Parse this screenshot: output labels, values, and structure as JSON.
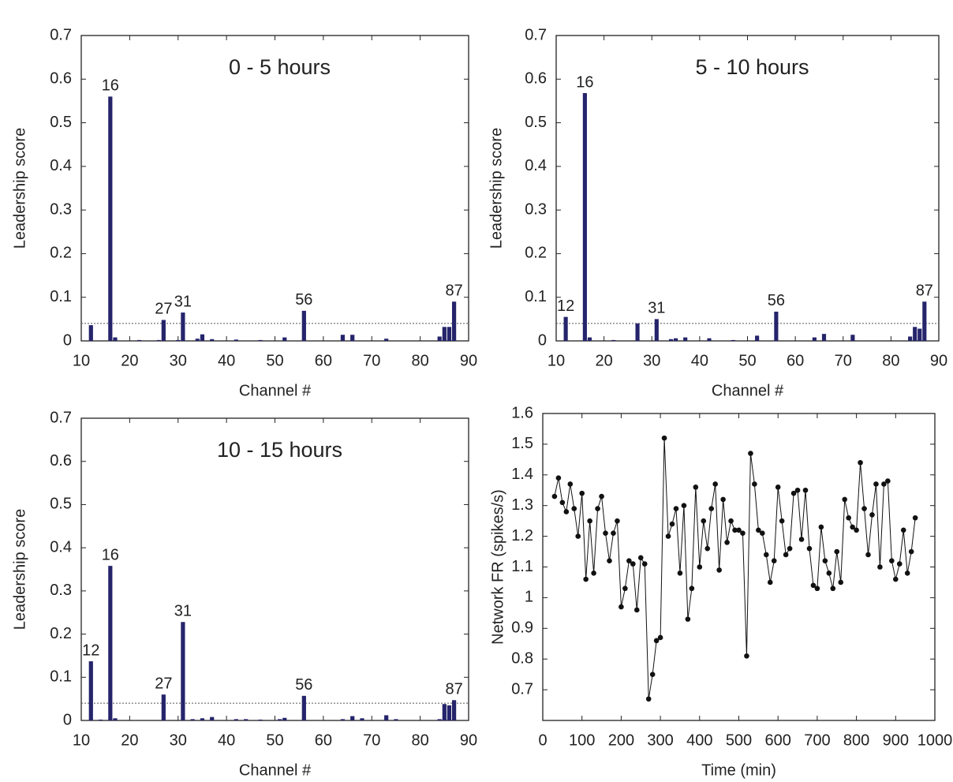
{
  "chart_data": [
    {
      "type": "bar",
      "title": "0 - 5 hours",
      "x_label": "Channel #",
      "y_label": "Leadership score",
      "x": [
        12,
        16,
        17,
        22,
        26,
        27,
        30,
        31,
        34,
        35,
        37,
        42,
        47,
        52,
        56,
        64,
        66,
        73,
        84,
        85,
        86,
        87
      ],
      "values": [
        0.036,
        0.56,
        0.008,
        0.002,
        0.002,
        0.048,
        0.002,
        0.065,
        0.005,
        0.015,
        0.004,
        0.003,
        0.002,
        0.008,
        0.069,
        0.014,
        0.014,
        0.005,
        0.01,
        0.032,
        0.032,
        0.09
      ],
      "point_labels": [
        null,
        "16",
        null,
        null,
        null,
        "27",
        null,
        "31",
        null,
        null,
        null,
        null,
        null,
        null,
        "56",
        null,
        null,
        null,
        null,
        null,
        null,
        "87"
      ],
      "color": "#25246b",
      "threshold": 0.04,
      "xlim": [
        10,
        90
      ],
      "xticks": [
        10,
        20,
        30,
        40,
        50,
        60,
        70,
        80,
        90
      ],
      "ylim": [
        0,
        0.7
      ],
      "yticks": [
        0,
        0.1,
        0.2,
        0.3,
        0.4,
        0.5,
        0.6,
        0.7
      ]
    },
    {
      "type": "bar",
      "title": "5 - 10 hours",
      "x_label": "Channel #",
      "y_label": "Leadership score",
      "x": [
        12,
        16,
        17,
        22,
        27,
        31,
        34,
        35,
        37,
        42,
        47,
        52,
        56,
        64,
        66,
        72,
        84,
        85,
        86,
        87
      ],
      "values": [
        0.055,
        0.568,
        0.008,
        0.002,
        0.04,
        0.05,
        0.004,
        0.006,
        0.008,
        0.006,
        0.002,
        0.012,
        0.067,
        0.008,
        0.016,
        0.014,
        0.01,
        0.032,
        0.028,
        0.09
      ],
      "point_labels": [
        "12",
        "16",
        null,
        null,
        null,
        "31",
        null,
        null,
        null,
        null,
        null,
        null,
        "56",
        null,
        null,
        null,
        null,
        null,
        null,
        "87"
      ],
      "color": "#25246b",
      "threshold": 0.04,
      "xlim": [
        10,
        90
      ],
      "xticks": [
        10,
        20,
        30,
        40,
        50,
        60,
        70,
        80,
        90
      ],
      "ylim": [
        0,
        0.7
      ],
      "yticks": [
        0,
        0.1,
        0.2,
        0.3,
        0.4,
        0.5,
        0.6,
        0.7
      ]
    },
    {
      "type": "bar",
      "title": "10 - 15 hours",
      "x_label": "Channel #",
      "y_label": "Leadership score",
      "x": [
        12,
        14,
        16,
        17,
        27,
        31,
        33,
        35,
        37,
        42,
        44,
        47,
        51,
        52,
        56,
        64,
        66,
        68,
        73,
        75,
        84,
        85,
        86,
        87
      ],
      "values": [
        0.137,
        0.002,
        0.358,
        0.005,
        0.06,
        0.228,
        0.003,
        0.005,
        0.008,
        0.003,
        0.003,
        0.002,
        0.003,
        0.006,
        0.057,
        0.003,
        0.01,
        0.005,
        0.012,
        0.003,
        0.003,
        0.038,
        0.035,
        0.047
      ],
      "point_labels": [
        "12",
        null,
        "16",
        null,
        "27",
        "31",
        null,
        null,
        null,
        null,
        null,
        null,
        null,
        null,
        "56",
        null,
        null,
        null,
        null,
        null,
        null,
        null,
        null,
        "87"
      ],
      "color": "#25246b",
      "threshold": 0.04,
      "xlim": [
        10,
        90
      ],
      "xticks": [
        10,
        20,
        30,
        40,
        50,
        60,
        70,
        80,
        90
      ],
      "ylim": [
        0,
        0.7
      ],
      "yticks": [
        0,
        0.1,
        0.2,
        0.3,
        0.4,
        0.5,
        0.6,
        0.7
      ]
    },
    {
      "type": "line",
      "x_label": "Time (min)",
      "y_label": "Network FR (spikes/s)",
      "x": [
        30,
        40,
        50,
        60,
        70,
        80,
        90,
        100,
        110,
        120,
        130,
        140,
        150,
        160,
        170,
        180,
        190,
        200,
        210,
        220,
        230,
        240,
        250,
        260,
        270,
        280,
        290,
        300,
        310,
        320,
        330,
        340,
        350,
        360,
        370,
        380,
        390,
        400,
        410,
        420,
        430,
        440,
        450,
        460,
        470,
        480,
        490,
        500,
        510,
        520,
        530,
        540,
        550,
        560,
        570,
        580,
        590,
        600,
        610,
        620,
        630,
        640,
        650,
        660,
        670,
        680,
        690,
        700,
        710,
        720,
        730,
        740,
        750,
        760,
        770,
        780,
        790,
        800,
        810,
        820,
        830,
        840,
        850,
        860,
        870,
        880,
        890,
        900,
        910,
        920,
        930,
        940,
        950
      ],
      "values": [
        1.33,
        1.39,
        1.31,
        1.28,
        1.37,
        1.29,
        1.2,
        1.34,
        1.06,
        1.25,
        1.08,
        1.29,
        1.33,
        1.21,
        1.12,
        1.21,
        1.25,
        0.97,
        1.03,
        1.12,
        1.11,
        0.96,
        1.13,
        1.11,
        0.67,
        0.75,
        0.86,
        0.87,
        1.52,
        1.2,
        1.24,
        1.29,
        1.08,
        1.3,
        0.93,
        1.03,
        1.36,
        1.1,
        1.25,
        1.16,
        1.29,
        1.37,
        1.09,
        1.32,
        1.18,
        1.25,
        1.22,
        1.22,
        1.21,
        0.81,
        1.47,
        1.37,
        1.22,
        1.21,
        1.14,
        1.05,
        1.12,
        1.36,
        1.25,
        1.14,
        1.16,
        1.34,
        1.35,
        1.19,
        1.35,
        1.16,
        1.04,
        1.03,
        1.23,
        1.12,
        1.08,
        1.03,
        1.15,
        1.05,
        1.32,
        1.26,
        1.23,
        1.22,
        1.44,
        1.29,
        1.14,
        1.27,
        1.37,
        1.1,
        1.37,
        1.38,
        1.12,
        1.06,
        1.11,
        1.22,
        1.08,
        1.15,
        1.26
      ],
      "color": "#111111",
      "xlim": [
        0,
        1000
      ],
      "xticks": [
        0,
        100,
        200,
        300,
        400,
        500,
        600,
        700,
        800,
        900,
        1000
      ],
      "ylim": [
        0.6,
        1.6
      ],
      "yticks": [
        0.7,
        0.8,
        0.9,
        1,
        1.1,
        1.2,
        1.3,
        1.4,
        1.5,
        1.6
      ]
    }
  ]
}
